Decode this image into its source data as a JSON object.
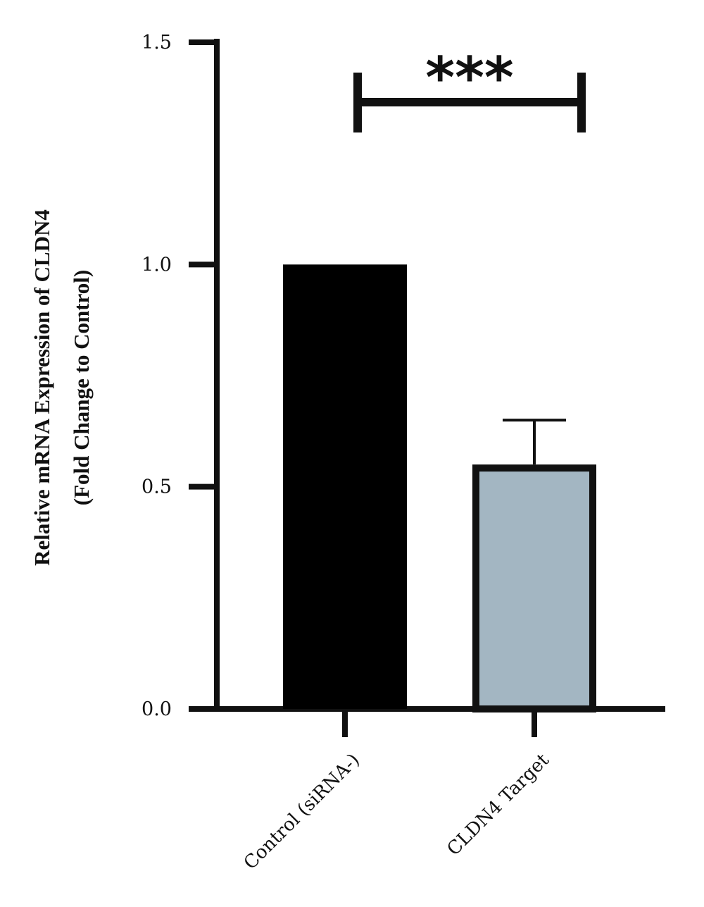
{
  "chart_data": {
    "type": "bar",
    "title": "",
    "xlabel": "",
    "ylabel_lines": [
      "Relative mRNA Expression of CLDN4",
      "(Fold Change to Control)"
    ],
    "categories": [
      "Control (siRNA-)",
      "CLDN4 Target"
    ],
    "values": [
      1.0,
      0.55
    ],
    "error_upper": [
      0,
      0.1
    ],
    "ylim": [
      0,
      1.5
    ],
    "yticks": [
      "0.0",
      "0.5",
      "1.0",
      "1.5"
    ],
    "bar_colors": [
      "#000000",
      "#a3b6c2"
    ],
    "grid": false,
    "significance": {
      "between": [
        0,
        1
      ],
      "label": "***"
    }
  }
}
